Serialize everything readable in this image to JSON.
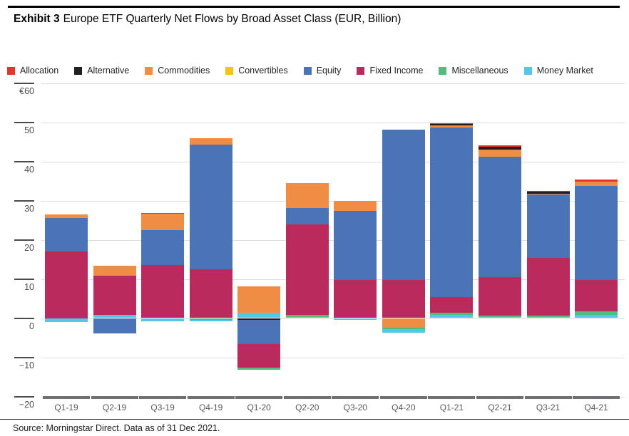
{
  "header": {
    "exhibit": "Exhibit 3",
    "title": "Europe ETF Quarterly Net Flows by Broad Asset Class (EUR, Billion)"
  },
  "footer": {
    "source": "Source: Morningstar Direct. Data as of 31 Dec 2021."
  },
  "chart_data": {
    "type": "bar",
    "subtype": "stacked",
    "title": "Europe ETF Quarterly Net Flows by Broad Asset Class (EUR, Billion)",
    "currency_unit": "EUR Billion",
    "grid": true,
    "legend_position": "top",
    "categories": [
      "Q1-19",
      "Q2-19",
      "Q3-19",
      "Q4-19",
      "Q1-20",
      "Q2-20",
      "Q3-20",
      "Q4-20",
      "Q1-21",
      "Q2-21",
      "Q3-21",
      "Q4-21"
    ],
    "y_axis": {
      "ylim": [
        -20,
        60
      ],
      "ticks": [
        {
          "label": "€60",
          "value": 60
        },
        {
          "label": "50",
          "value": 50
        },
        {
          "label": "40",
          "value": 40
        },
        {
          "label": "30",
          "value": 30
        },
        {
          "label": "20",
          "value": 20
        },
        {
          "label": "10",
          "value": 10
        },
        {
          "label": "0",
          "value": 0
        },
        {
          "label": "−10",
          "value": -10
        },
        {
          "label": "−20",
          "value": -20
        }
      ]
    },
    "series": [
      {
        "key": "allocation",
        "name": "Allocation",
        "color": "#e5342c",
        "values": [
          0,
          0,
          0.3,
          0,
          0,
          0,
          0,
          0,
          0.3,
          0.3,
          0.3,
          0.4
        ]
      },
      {
        "key": "alternative",
        "name": "Alternative",
        "color": "#231f20",
        "values": [
          0,
          0,
          0,
          0,
          -0.4,
          0,
          0,
          0,
          0.4,
          0.8,
          0.4,
          0
        ]
      },
      {
        "key": "commodities",
        "name": "Commodities",
        "color": "#ef8d44",
        "values": [
          0.8,
          2.6,
          4.2,
          1.6,
          6.7,
          6.4,
          2.6,
          -2.4,
          0.5,
          1.9,
          0.3,
          1.1
        ]
      },
      {
        "key": "convertibles",
        "name": "Convertibles",
        "color": "#f3c317",
        "values": [
          0,
          0,
          0,
          0,
          0,
          0,
          0,
          0,
          0,
          0,
          0,
          0
        ]
      },
      {
        "key": "equity",
        "name": "Equity",
        "color": "#4a74b5",
        "values": [
          8.6,
          -3.9,
          8.8,
          31.9,
          -6.3,
          4.2,
          17.5,
          38.4,
          43.3,
          30.7,
          16.2,
          24.1
        ]
      },
      {
        "key": "fixed_income",
        "name": "Fixed Income",
        "color": "#ba2a5c",
        "values": [
          17.0,
          9.9,
          13.6,
          12.4,
          -5.9,
          23.1,
          9.8,
          9.7,
          3.9,
          9.8,
          14.7,
          8.0
        ]
      },
      {
        "key": "miscellaneous",
        "name": "Miscellaneous",
        "color": "#4fbd7e",
        "values": [
          0,
          0,
          0,
          -0.5,
          -0.5,
          0.5,
          0,
          -0.5,
          0.6,
          0.4,
          0.3,
          0.8
        ]
      },
      {
        "key": "money_market",
        "name": "Money Market",
        "color": "#56c5ea",
        "values": [
          -1.0,
          0.9,
          -0.8,
          -0.4,
          1.4,
          0.3,
          -0.4,
          -0.8,
          0.8,
          0.2,
          0.3,
          0.9
        ]
      }
    ],
    "stack_order_positive": [
      "money_market",
      "miscellaneous",
      "fixed_income",
      "equity",
      "convertibles",
      "commodities",
      "alternative",
      "allocation"
    ],
    "stack_order_negative": [
      "allocation",
      "alternative",
      "commodities",
      "convertibles",
      "equity",
      "fixed_income",
      "miscellaneous",
      "money_market"
    ]
  }
}
